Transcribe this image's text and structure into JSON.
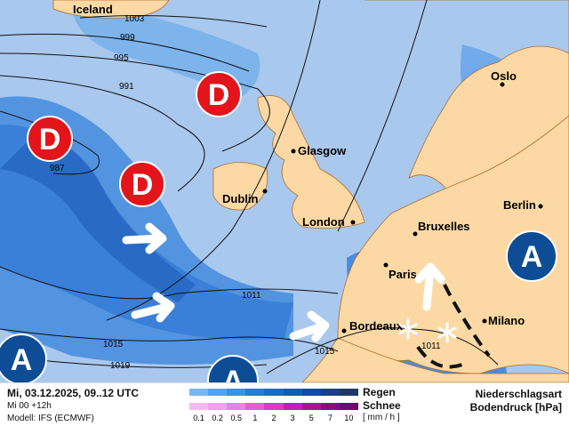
{
  "map": {
    "cities": [
      {
        "name": "Iceland"
      },
      {
        "name": "Oslo"
      },
      {
        "name": "Glasgow"
      },
      {
        "name": "Dublin"
      },
      {
        "name": "London"
      },
      {
        "name": "Bruxelles"
      },
      {
        "name": "Berlin"
      },
      {
        "name": "Paris"
      },
      {
        "name": "Bordeaux"
      },
      {
        "name": "Milano"
      }
    ],
    "isobars": [
      "1003",
      "999",
      "995",
      "991",
      "987",
      "1011",
      "1015",
      "1019",
      "1015",
      "1011"
    ],
    "low_label": "D",
    "high_label": "A",
    "colors": {
      "sea": "#a9c8ee",
      "land": "#fcd9a4",
      "low": "#e3141b",
      "high": "#0e4c96"
    }
  },
  "footer": {
    "date": "Mi, 03.12.2025, 09..12 UTC",
    "run": "Mi 00 +12h",
    "model": "Modell: IFS (ECMWF)",
    "rain_label": "Regen",
    "snow_label": "Schnee",
    "unit": "[ mm / h ]",
    "scale": [
      "0.1",
      "0.2",
      "0.5",
      "1",
      "2",
      "3",
      "5",
      "7",
      "10"
    ],
    "title1": "Niederschlagsart",
    "title2": "Bodendruck [hPa]",
    "rain_colors": [
      "#78b6f2",
      "#5aa3ec",
      "#3f8fe2",
      "#2a7bd6",
      "#1c6ac8",
      "#155ab4",
      "#124c9c",
      "#1a4280",
      "#1c3a66"
    ],
    "snow_colors": [
      "#f9b8f2",
      "#f49ef0",
      "#ee7de9",
      "#e65ae2",
      "#dc36d8",
      "#c41cc4",
      "#a810a8",
      "#8c088c",
      "#700870"
    ]
  }
}
